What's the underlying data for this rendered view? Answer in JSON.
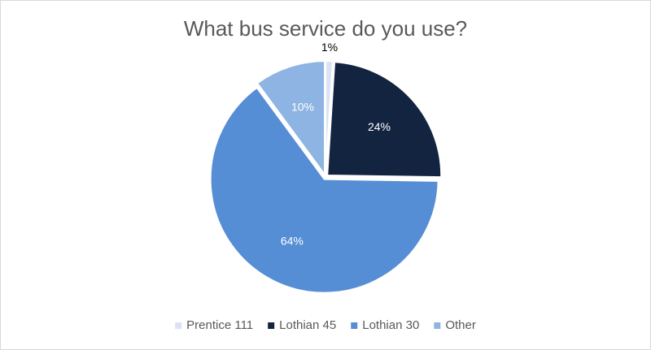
{
  "chart_data": {
    "type": "pie",
    "title": "What bus service do you use?",
    "categories": [
      "Prentice 111",
      "Lothian 45",
      "Lothian 30",
      "Other"
    ],
    "values": [
      1,
      24,
      64,
      10
    ],
    "value_labels": [
      "1%",
      "24%",
      "64%",
      "10%"
    ],
    "colors": [
      "#dae3f3",
      "#132440",
      "#558ed5",
      "#8eb4e3"
    ],
    "legend": "bottom"
  }
}
